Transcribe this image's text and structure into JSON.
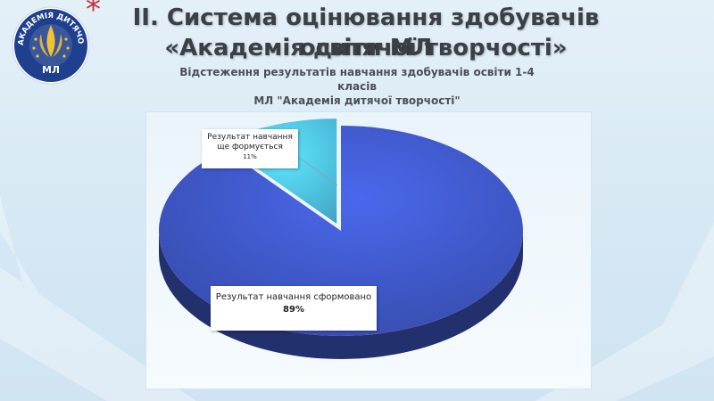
{
  "slide": {
    "title_line1": "II. Система оцінювання здобувачів освіти МЛ",
    "title_line2": "«Академія дитячої творчості»",
    "asterisk": "*",
    "logo_text": "АКАДЕМІЯ ДИТЯЧОЇ ТВОРЧОСТІ",
    "logo_abbr": "МЛ"
  },
  "colors": {
    "accent_blue": "#3f58c8",
    "small_slice": "#4fc3e8",
    "title_text": "#3b3f48",
    "asterisk": "#c2323c"
  },
  "chart_data": {
    "type": "pie",
    "title_lines": [
      "Відстеження результатів навчання здобувачів освіти 1-4",
      "класів",
      "МЛ \"Академія дитячої творчості\""
    ],
    "categories": [
      "Результат навчання сформовано",
      "Результат навчання ще формується"
    ],
    "values": [
      89,
      11
    ],
    "value_labels": [
      "89%",
      "11%"
    ],
    "colors": [
      "#3f58c8",
      "#4fc3e8"
    ],
    "style": "3d-exploded"
  }
}
